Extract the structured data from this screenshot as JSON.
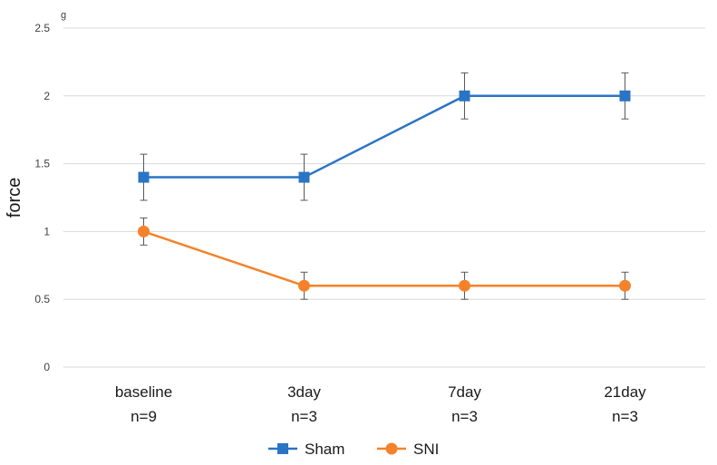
{
  "chart_data": {
    "type": "line",
    "title": "",
    "ylabel": "force",
    "yunit": "g",
    "ylim": [
      0,
      2.5
    ],
    "yticks": [
      0,
      0.5,
      1,
      1.5,
      2,
      2.5
    ],
    "grid": true,
    "legend_position": "bottom",
    "categories": [
      {
        "label": "baseline",
        "n": "n=9"
      },
      {
        "label": "3day",
        "n": "n=3"
      },
      {
        "label": "7day",
        "n": "n=3"
      },
      {
        "label": "21day",
        "n": "n=3"
      }
    ],
    "series": [
      {
        "name": "Sham",
        "color": "#2a74c5",
        "marker": "square",
        "values": [
          1.4,
          1.4,
          2.0,
          2.0
        ],
        "errors": [
          0.17,
          0.17,
          0.17,
          0.17
        ]
      },
      {
        "name": "SNI",
        "color": "#f5822a",
        "marker": "circle",
        "values": [
          1.0,
          0.6,
          0.6,
          0.6
        ],
        "errors": [
          0.1,
          0.1,
          0.1,
          0.1
        ]
      }
    ]
  }
}
